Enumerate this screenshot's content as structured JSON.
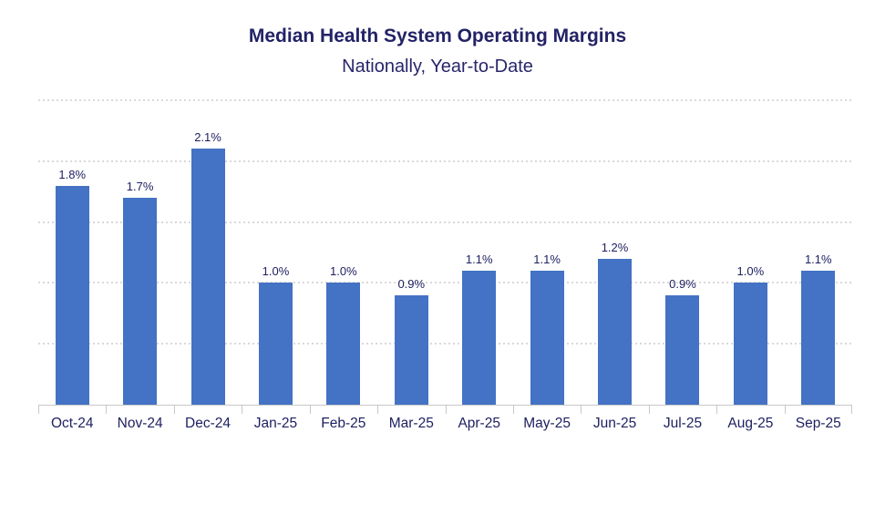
{
  "chart_data": {
    "type": "bar",
    "title": "Median Health System Operating Margins",
    "subtitle": "Nationally, Year-to-Date",
    "categories": [
      "Oct-24",
      "Nov-24",
      "Dec-24",
      "Jan-25",
      "Feb-25",
      "Mar-25",
      "Apr-25",
      "May-25",
      "Jun-25",
      "Jul-25",
      "Aug-25",
      "Sep-25"
    ],
    "values": [
      1.8,
      1.7,
      2.1,
      1.0,
      1.0,
      0.9,
      1.1,
      1.1,
      1.2,
      0.9,
      1.0,
      1.1
    ],
    "data_labels": [
      "1.8%",
      "1.7%",
      "2.1%",
      "1.0%",
      "1.0%",
      "0.9%",
      "1.1%",
      "1.1%",
      "1.2%",
      "0.9%",
      "1.0%",
      "1.1%"
    ],
    "xlabel": "",
    "ylabel": "",
    "ylim": [
      0,
      2.5
    ],
    "grid_step": 0.5,
    "grid": "horizontal-dotted",
    "y_axis_tick_labels_visible": false,
    "legend": "none",
    "colors": {
      "bar": "#4472C4",
      "title": "#232267",
      "subtitle": "#29256B",
      "data_label": "#1F2161",
      "axis_label": "#1F2161",
      "gridline": "#D9D9D9",
      "axis_line": "#C8C8C8",
      "background": "#FFFFFF"
    }
  }
}
